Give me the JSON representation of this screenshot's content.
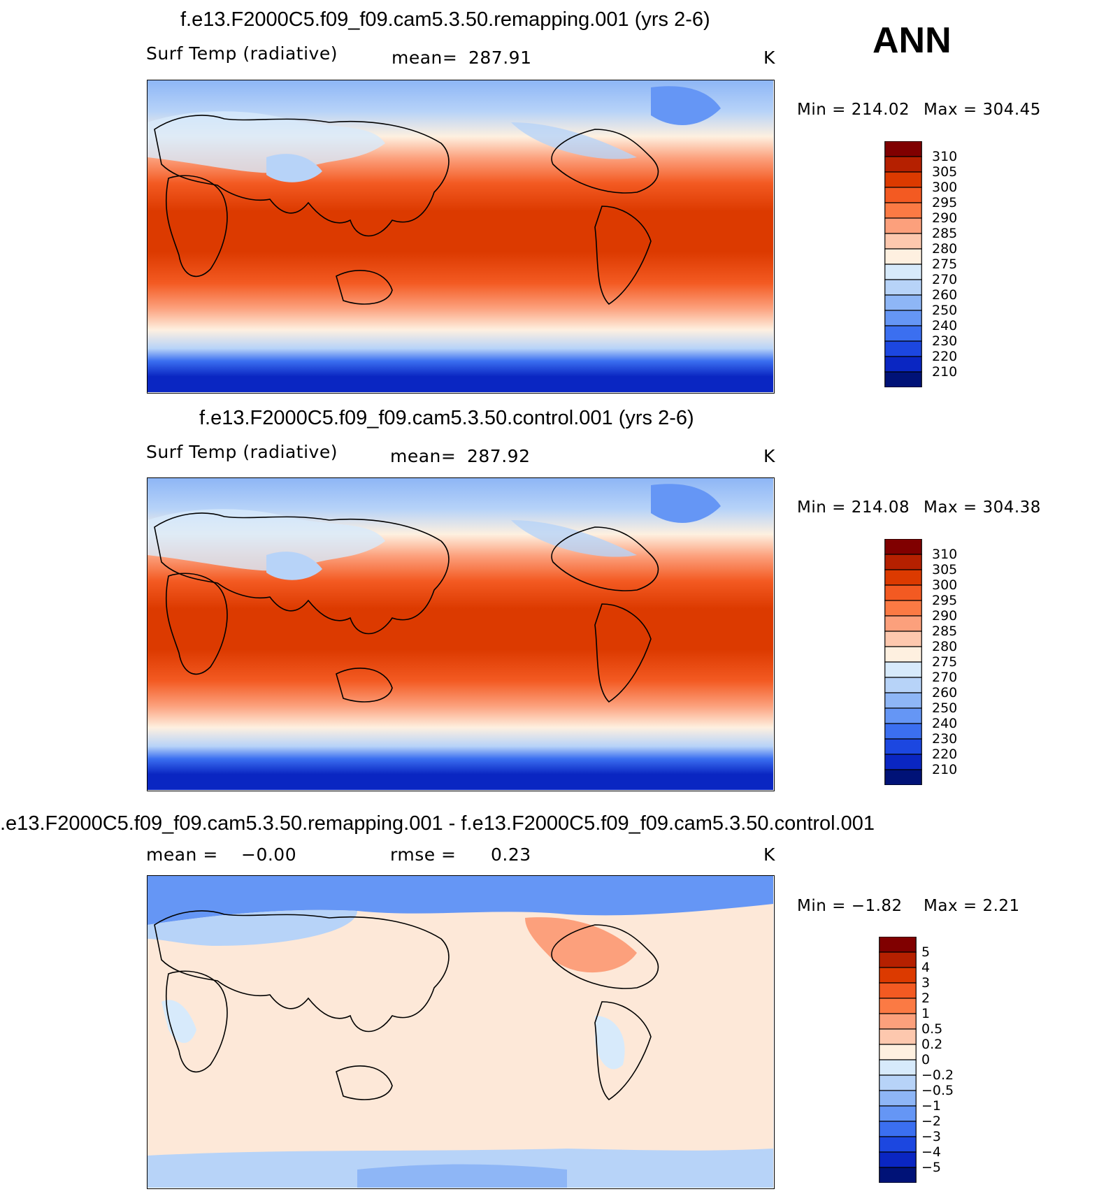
{
  "season": "ANN",
  "chart_data": [
    {
      "type": "heatmap",
      "title": "f.e13.F2000C5.f09_f09.cam5.3.50.remapping.001 (yrs 2-6)",
      "variable": "Surf Temp (radiative)",
      "stat_label": "mean=",
      "stat_value": "287.91",
      "units": "K",
      "min_text": "Min  =  214.02",
      "max_text": "Max  =  304.45",
      "levels": [
        "310",
        "305",
        "300",
        "295",
        "290",
        "285",
        "280",
        "275",
        "270",
        "260",
        "250",
        "240",
        "230",
        "220",
        "210"
      ],
      "colors": [
        "#800000",
        "#b52000",
        "#dc3a00",
        "#f35a22",
        "#fb7a44",
        "#fca07c",
        "#fdc8ae",
        "#fef0e0",
        "#d7eafb",
        "#b7d3f8",
        "#8eb6f6",
        "#6596f5",
        "#3b6ff0",
        "#1c47e0",
        "#0a26c2",
        "#001277"
      ]
    },
    {
      "type": "heatmap",
      "title": "f.e13.F2000C5.f09_f09.cam5.3.50.control.001 (yrs 2-6)",
      "variable": "Surf Temp (radiative)",
      "stat_label": "mean=",
      "stat_value": "287.92",
      "units": "K",
      "min_text": "Min  =  214.08",
      "max_text": "Max  =  304.38",
      "levels": [
        "310",
        "305",
        "300",
        "295",
        "290",
        "285",
        "280",
        "275",
        "270",
        "260",
        "250",
        "240",
        "230",
        "220",
        "210"
      ],
      "colors": [
        "#800000",
        "#b52000",
        "#dc3a00",
        "#f35a22",
        "#fb7a44",
        "#fca07c",
        "#fdc8ae",
        "#fef0e0",
        "#d7eafb",
        "#b7d3f8",
        "#8eb6f6",
        "#6596f5",
        "#3b6ff0",
        "#1c47e0",
        "#0a26c2",
        "#001277"
      ]
    },
    {
      "type": "heatmap",
      "title": ".e13.F2000C5.f09_f09.cam5.3.50.remapping.001 - f.e13.F2000C5.f09_f09.cam5.3.50.control.001",
      "variable": "",
      "stat_label": "mean =",
      "stat_value": "−0.00",
      "stat2_label": "rmse =",
      "stat2_value": "0.23",
      "units": "K",
      "min_text": "Min  =    −1.82",
      "max_text": "Max  =     2.21",
      "levels": [
        "5",
        "4",
        "3",
        "2",
        "1",
        "0.5",
        "0.2",
        "0",
        "−0.2",
        "−0.5",
        "−1",
        "−2",
        "−3",
        "−4",
        "−5"
      ],
      "colors": [
        "#800000",
        "#b52000",
        "#dc3a00",
        "#f35a22",
        "#fb7a44",
        "#fca07c",
        "#fdc8ae",
        "#fef0e0",
        "#d7eafb",
        "#b7d3f8",
        "#8eb6f6",
        "#6596f5",
        "#3b6ff0",
        "#1c47e0",
        "#0a26c2",
        "#001277"
      ]
    }
  ]
}
